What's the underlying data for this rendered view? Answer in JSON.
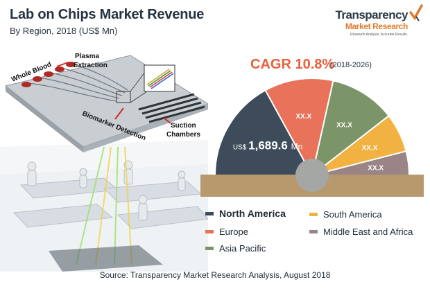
{
  "header": {
    "title": "Lab on Chips Market Revenue",
    "subtitle": "By Region, 2018 (US$ Mn)"
  },
  "logo": {
    "name": "Transparency",
    "sub": "Market Research",
    "tagline": "Research Analysis. Accurate Results."
  },
  "illustration": {
    "labels": {
      "whole_blood": "Whole Blood",
      "plasma": "Plasma",
      "extraction": "Extraction",
      "biomarker": "Biomarker Detection",
      "suction": "Suction",
      "chambers": "Chambers"
    }
  },
  "cagr": {
    "label": "CAGR 10.8%",
    "period": "(2018-2026)"
  },
  "chart_data": {
    "type": "pie",
    "variant": "half-donut",
    "title": "Lab on Chips Market Revenue",
    "subtitle": "By Region, 2018 (US$ Mn)",
    "legend_position": "bottom",
    "slices": [
      {
        "name": "North America",
        "value": 1689.6,
        "label": "US$ 1,689.6 Mn",
        "label_prefix": "US$",
        "label_value": "1,689.6",
        "label_suffix": "Mn",
        "color": "#3d4b5b",
        "share": 0.34
      },
      {
        "name": "Europe",
        "value": null,
        "label": "XX.X",
        "color": "#e8725a",
        "share": 0.23
      },
      {
        "name": "Asia Pacific",
        "value": null,
        "label": "XX.X",
        "color": "#7b9468",
        "share": 0.22
      },
      {
        "name": "South America",
        "value": null,
        "label": "XX.X",
        "color": "#f2b241",
        "share": 0.13
      },
      {
        "name": "Middle East and Africa",
        "value": null,
        "label": "XX.X",
        "color": "#9b8486",
        "share": 0.08
      }
    ]
  },
  "legend": {
    "items": [
      {
        "label": "North America",
        "color": "#3d4b5b"
      },
      {
        "label": "South America",
        "color": "#f2b241"
      },
      {
        "label": "Europe",
        "color": "#e8725a"
      },
      {
        "label": "Middle East and Africa",
        "color": "#9b8486"
      },
      {
        "label": "Asia Pacific",
        "color": "#7b9468"
      }
    ]
  },
  "footer": {
    "source": "Source: Transparency Market Research Analysis, August 2018"
  }
}
